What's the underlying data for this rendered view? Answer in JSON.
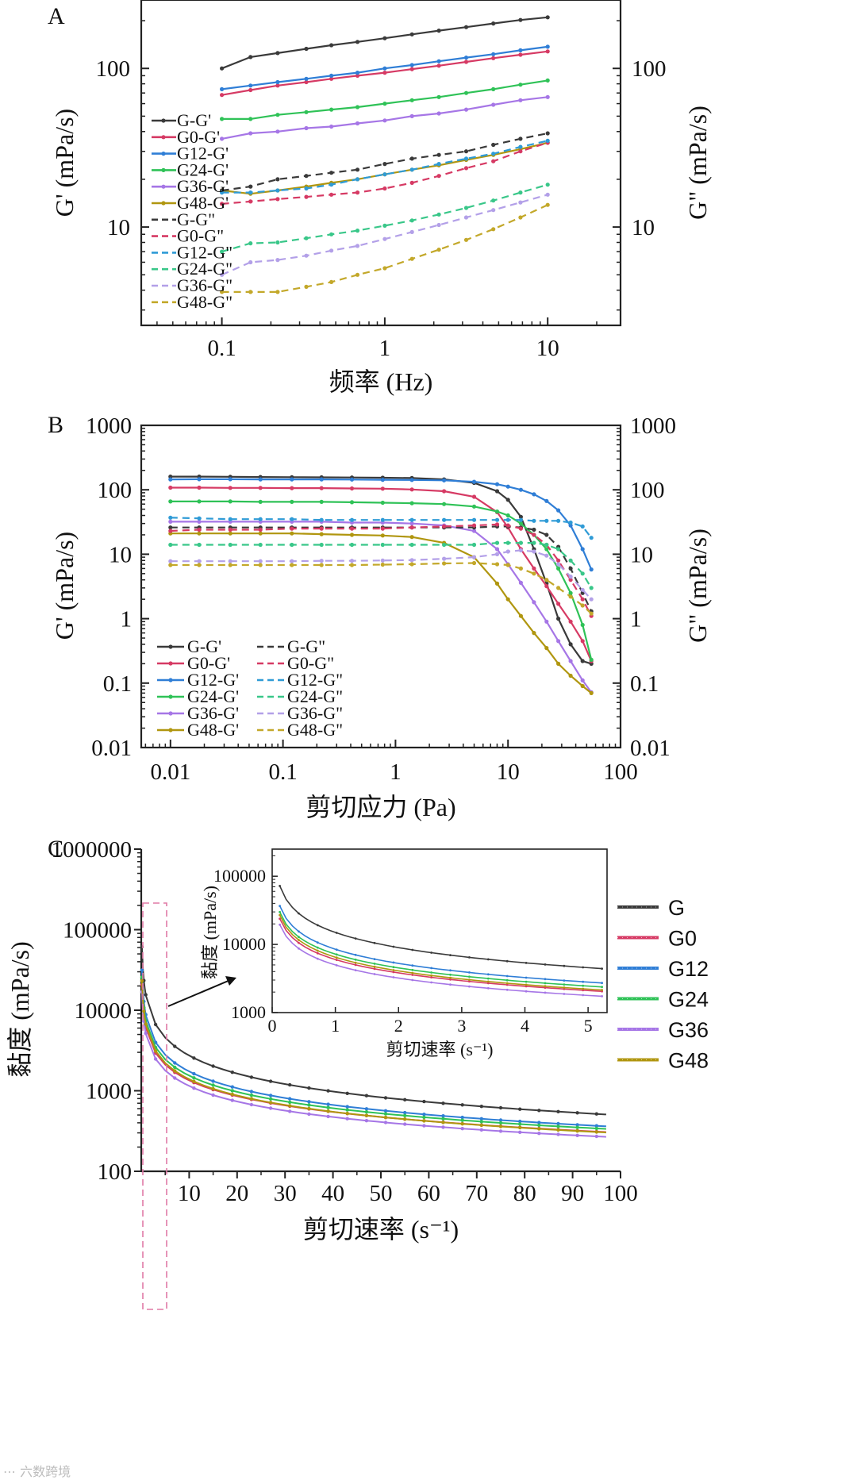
{
  "watermark": "⋯ 六数跨境",
  "chart_data": [
    {
      "panel": "A",
      "type": "line",
      "xscale": "log",
      "yscale": "log",
      "xlabel": "频率 (Hz)",
      "ylabel": "G' (mPa/s)",
      "y2label": "G\" (mPa/s)",
      "xlim": [
        0.032,
        28
      ],
      "ylim": [
        2.4,
        270
      ],
      "xticks": [
        {
          "v": 0.1,
          "t": "0.1"
        },
        {
          "v": 1,
          "t": "1"
        },
        {
          "v": 10,
          "t": "10"
        }
      ],
      "yticks": [
        {
          "v": 10,
          "t": "10"
        },
        {
          "v": 100,
          "t": "100"
        }
      ],
      "legend": "left",
      "x": [
        0.1,
        0.15,
        0.22,
        0.33,
        0.47,
        0.68,
        1,
        1.47,
        2.15,
        3.16,
        4.64,
        6.81,
        10
      ],
      "series": [
        {
          "name": "G-G'",
          "color": "#3a3a3a",
          "style": "solid",
          "values": [
            100,
            118,
            125,
            133,
            140,
            147,
            155,
            164,
            173,
            182,
            192,
            202,
            210
          ]
        },
        {
          "name": "G0-G'",
          "color": "#d63a64",
          "style": "solid",
          "values": [
            68,
            73,
            78,
            82,
            86,
            90,
            94,
            99,
            104,
            110,
            116,
            122,
            128
          ]
        },
        {
          "name": "G12-G'",
          "color": "#2f7ed6",
          "style": "solid",
          "values": [
            74,
            78,
            82,
            86,
            90,
            94,
            100,
            105,
            111,
            117,
            123,
            130,
            137
          ]
        },
        {
          "name": "G24-G'",
          "color": "#2fc257",
          "style": "solid",
          "values": [
            48,
            48,
            51,
            53,
            55,
            57,
            60,
            63,
            66,
            70,
            74,
            79,
            84
          ]
        },
        {
          "name": "G36-G'",
          "color": "#a676e6",
          "style": "solid",
          "values": [
            36,
            39,
            40,
            42,
            43,
            45,
            47,
            50,
            52,
            55,
            59,
            63,
            66
          ]
        },
        {
          "name": "G48-G'",
          "color": "#b0960f",
          "style": "solid",
          "values": [
            17,
            16.2,
            17,
            18,
            19,
            20,
            21.5,
            23,
            24.5,
            26.5,
            28.5,
            31,
            34
          ]
        },
        {
          "name": "G-G\"",
          "color": "#3a3a3a",
          "style": "dash",
          "values": [
            17,
            18,
            20,
            21,
            22,
            23,
            25,
            27,
            28.5,
            30,
            33,
            36,
            39
          ]
        },
        {
          "name": "G0-G\"",
          "color": "#d63a64",
          "style": "dash",
          "values": [
            14,
            14.5,
            15,
            15.5,
            16,
            16.5,
            17.5,
            19,
            21,
            23.5,
            26,
            30,
            34
          ]
        },
        {
          "name": "G12-G\"",
          "color": "#2f9bd6",
          "style": "dash",
          "values": [
            16.5,
            16.5,
            17,
            17.5,
            18.5,
            20,
            21.5,
            23,
            25,
            27,
            29,
            32,
            35
          ]
        },
        {
          "name": "G24-G\"",
          "color": "#39c789",
          "style": "dash",
          "values": [
            7,
            7.9,
            8,
            8.5,
            9,
            9.5,
            10.2,
            11,
            12,
            13.2,
            14.7,
            16.5,
            18.5
          ]
        },
        {
          "name": "G36-G\"",
          "color": "#b3a0e8",
          "style": "dash",
          "values": [
            5,
            6,
            6.2,
            6.6,
            7.1,
            7.6,
            8.4,
            9.3,
            10.3,
            11.5,
            12.8,
            14.3,
            16
          ]
        },
        {
          "name": "G48-G\"",
          "color": "#c3a82a",
          "style": "dash",
          "values": [
            3.9,
            3.9,
            3.9,
            4.2,
            4.5,
            5,
            5.5,
            6.3,
            7.2,
            8.3,
            9.7,
            11.5,
            13.8
          ]
        }
      ]
    },
    {
      "panel": "B",
      "type": "line",
      "xscale": "log",
      "yscale": "log",
      "xlabel": "剪切应力 (Pa)",
      "ylabel": "G' (mPa/s)",
      "y2label": "G\" (mPa/s)",
      "xlim": [
        0.0055,
        100
      ],
      "ylim": [
        0.01,
        1000
      ],
      "xticks": [
        {
          "v": 0.01,
          "t": "0.01"
        },
        {
          "v": 0.1,
          "t": "0.1"
        },
        {
          "v": 1,
          "t": "1"
        },
        {
          "v": 10,
          "t": "10"
        },
        {
          "v": 100,
          "t": "100"
        }
      ],
      "yticks": [
        {
          "v": 0.01,
          "t": "0.01"
        },
        {
          "v": 0.1,
          "t": "0.1"
        },
        {
          "v": 1,
          "t": "1"
        },
        {
          "v": 10,
          "t": "10"
        },
        {
          "v": 100,
          "t": "100"
        },
        {
          "v": 1000,
          "t": "1000"
        }
      ],
      "legend": "bottom-left, two columns",
      "x": [
        0.01,
        0.018,
        0.034,
        0.063,
        0.12,
        0.22,
        0.41,
        0.77,
        1.4,
        2.7,
        5,
        8,
        10,
        13,
        17,
        22,
        28,
        36,
        46,
        55
      ],
      "series": [
        {
          "name": "G-G'",
          "color": "#3a3a3a",
          "style": "solid",
          "values": [
            160,
            160,
            159,
            158,
            157,
            156,
            155,
            154,
            152,
            145,
            128,
            95,
            70,
            38,
            12,
            3.5,
            1,
            0.4,
            0.22,
            0.2
          ]
        },
        {
          "name": "G0-G'",
          "color": "#d63a64",
          "style": "solid",
          "values": [
            108,
            108,
            107,
            107,
            106,
            106,
            105,
            104,
            101,
            95,
            78,
            45,
            26,
            12,
            6,
            3.2,
            1.7,
            0.9,
            0.45,
            0.22
          ]
        },
        {
          "name": "G12-G'",
          "color": "#2f7ed6",
          "style": "solid",
          "values": [
            145,
            146,
            146,
            145,
            145,
            145,
            144,
            143,
            142,
            140,
            133,
            122,
            112,
            100,
            85,
            67,
            48,
            28,
            12,
            5.8
          ]
        },
        {
          "name": "G24-G'",
          "color": "#2fc257",
          "style": "solid",
          "values": [
            66,
            66,
            66,
            65,
            65,
            65,
            64,
            63,
            62,
            60,
            55,
            46,
            40,
            30,
            20,
            12,
            6,
            2.5,
            0.8,
            0.23
          ]
        },
        {
          "name": "G36-G'",
          "color": "#a676e6",
          "style": "solid",
          "values": [
            32,
            32,
            32,
            32,
            32,
            32,
            31,
            31,
            30,
            28,
            23,
            12,
            7,
            3.6,
            1.8,
            0.9,
            0.45,
            0.22,
            0.11,
            0.072
          ]
        },
        {
          "name": "G48-G'",
          "color": "#b0960f",
          "style": "solid",
          "values": [
            21,
            21,
            21,
            21,
            21,
            20.5,
            20,
            19.5,
            18.5,
            15,
            9,
            3.5,
            2,
            1.1,
            0.6,
            0.35,
            0.2,
            0.13,
            0.09,
            0.07
          ]
        },
        {
          "name": "G-G\"",
          "color": "#3a3a3a",
          "style": "dash",
          "values": [
            26,
            26,
            26,
            26,
            26,
            26,
            26,
            26,
            26,
            26,
            26,
            27,
            27,
            26,
            24,
            20,
            13,
            6,
            2.5,
            1.3
          ]
        },
        {
          "name": "G0-G\"",
          "color": "#d63a64",
          "style": "dash",
          "values": [
            23,
            24,
            24,
            24,
            25,
            25,
            25,
            25,
            26,
            27,
            28,
            29,
            28,
            25,
            20,
            14,
            8,
            4,
            2,
            1.1
          ]
        },
        {
          "name": "G12-G\"",
          "color": "#2f9bd6",
          "style": "dash",
          "values": [
            37,
            36,
            35,
            35,
            35,
            34,
            34,
            34,
            34,
            34,
            34,
            34,
            34,
            34,
            33,
            33,
            33,
            31,
            27,
            18
          ]
        },
        {
          "name": "G24-G\"",
          "color": "#39c789",
          "style": "dash",
          "values": [
            14,
            14,
            14,
            14,
            14,
            14,
            14,
            14,
            14,
            14,
            14,
            15,
            15,
            15,
            15,
            14,
            12,
            8,
            5,
            3
          ]
        },
        {
          "name": "G36-G\"",
          "color": "#b3a0e8",
          "style": "dash",
          "values": [
            7.8,
            7.8,
            7.8,
            7.8,
            7.8,
            7.9,
            7.9,
            8,
            8.1,
            8.5,
            9,
            10,
            11,
            11.5,
            11,
            9.5,
            7,
            4.5,
            2.8,
            2
          ]
        },
        {
          "name": "G48-G\"",
          "color": "#c3a82a",
          "style": "dash",
          "values": [
            6.8,
            6.8,
            6.8,
            6.8,
            6.8,
            6.8,
            6.8,
            6.9,
            7,
            7.2,
            7.3,
            7,
            6.8,
            6,
            5,
            4,
            3,
            2.2,
            1.6,
            1.2
          ]
        }
      ]
    },
    {
      "panel": "C",
      "type": "line",
      "xscale": "linear",
      "yscale": "log",
      "xlabel": "剪切速率 (s⁻¹)",
      "ylabel": "黏度 (mPa/s)",
      "xlim": [
        0,
        100
      ],
      "ylim": [
        100,
        1000000
      ],
      "xticks": [
        {
          "v": 10,
          "t": "10"
        },
        {
          "v": 20,
          "t": "20"
        },
        {
          "v": 30,
          "t": "30"
        },
        {
          "v": 40,
          "t": "40"
        },
        {
          "v": 50,
          "t": "50"
        },
        {
          "v": 60,
          "t": "60"
        },
        {
          "v": 70,
          "t": "70"
        },
        {
          "v": 80,
          "t": "80"
        },
        {
          "v": 90,
          "t": "90"
        },
        {
          "v": 100,
          "t": "100"
        }
      ],
      "yticks": [
        {
          "v": 100,
          "t": "100"
        },
        {
          "v": 1000,
          "t": "1000"
        },
        {
          "v": 10000,
          "t": "10000"
        },
        {
          "v": 100000,
          "t": "100000"
        },
        {
          "v": 1000000,
          "t": "1000000"
        }
      ],
      "legend": "right",
      "model": "viscosity = K · (shear rate)^(n−1)",
      "series": [
        {
          "name": "G",
          "color": "#3a3a3a",
          "K": 15000,
          "n": 0.26
        },
        {
          "name": "G0",
          "color": "#d63a64",
          "K": 6000,
          "n": 0.35
        },
        {
          "name": "G12",
          "color": "#2f7ed6",
          "K": 8500,
          "n": 0.31
        },
        {
          "name": "G24",
          "color": "#2fc257",
          "K": 7200,
          "n": 0.33
        },
        {
          "name": "G36",
          "color": "#a676e6",
          "K": 5000,
          "n": 0.36
        },
        {
          "name": "G48",
          "color": "#b0960f",
          "K": 6500,
          "n": 0.33
        }
      ],
      "inset": {
        "xlabel": "剪切速率 (s⁻¹)",
        "ylabel": "黏度 (mPa/s)",
        "xlim": [
          0,
          5.3
        ],
        "ylim": [
          1000,
          250000
        ],
        "xticks": [
          {
            "v": 0,
            "t": "0"
          },
          {
            "v": 1,
            "t": "1"
          },
          {
            "v": 2,
            "t": "2"
          },
          {
            "v": 3,
            "t": "3"
          },
          {
            "v": 4,
            "t": "4"
          },
          {
            "v": 5,
            "t": "5"
          }
        ],
        "yticks": [
          {
            "v": 1000,
            "t": "1000"
          },
          {
            "v": 10000,
            "t": "10000"
          },
          {
            "v": 100000,
            "t": "100000"
          }
        ]
      }
    }
  ]
}
